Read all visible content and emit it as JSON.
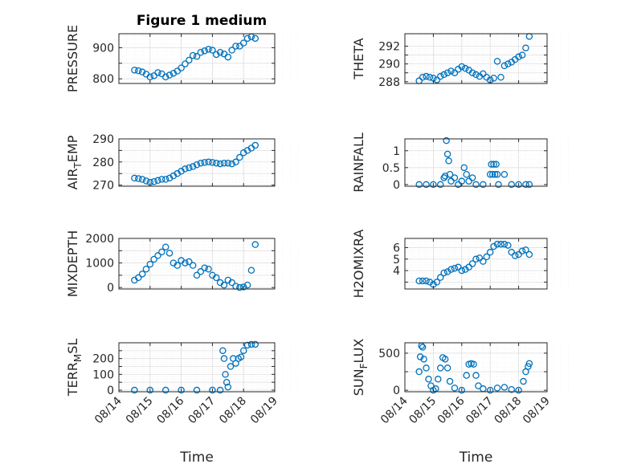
{
  "title": "Figure 1 medium",
  "x_tick_labels": [
    "08/14",
    "08/15",
    "08/16",
    "08/17",
    "08/18",
    "08/19"
  ],
  "x_axis_label": "Time",
  "marker_color": "#0072BD",
  "chart_data": [
    {
      "type": "scatter",
      "ylabel": "PRESSURE",
      "title": "Figure 1 medium",
      "ylim": [
        785,
        945
      ],
      "yticks": [
        800,
        850,
        900
      ],
      "ytick_labels": [
        "800",
        "",
        "900"
      ],
      "grid": true,
      "x": [
        "08/14 12:00",
        "08/14 15:00",
        "08/14 18:00",
        "08/14 21:00",
        "08/15 00:00",
        "08/15 03:00",
        "08/15 06:00",
        "08/15 09:00",
        "08/15 12:00",
        "08/15 15:00",
        "08/15 18:00",
        "08/15 21:00",
        "08/16 00:00",
        "08/16 03:00",
        "08/16 06:00",
        "08/16 09:00",
        "08/16 12:00",
        "08/16 15:00",
        "08/16 18:00",
        "08/16 21:00",
        "08/17 00:00",
        "08/17 03:00",
        "08/17 06:00",
        "08/17 09:00",
        "08/17 12:00",
        "08/17 15:00",
        "08/17 18:00",
        "08/17 21:00",
        "08/18 00:00",
        "08/18 03:00",
        "08/18 06:00",
        "08/18 09:00"
      ],
      "values": [
        828,
        826,
        822,
        815,
        806,
        810,
        820,
        816,
        806,
        812,
        818,
        825,
        835,
        848,
        860,
        875,
        872,
        885,
        890,
        895,
        892,
        878,
        885,
        880,
        870,
        892,
        905,
        905,
        915,
        930,
        935,
        930
      ]
    },
    {
      "type": "scatter",
      "ylabel": "THETA",
      "ylim": [
        287.8,
        293.4
      ],
      "yticks": [
        288,
        289,
        290,
        291,
        292
      ],
      "ytick_labels": [
        "288",
        "",
        "290",
        "",
        "292"
      ],
      "grid": true,
      "x": [
        "08/14 12:00",
        "08/14 15:00",
        "08/14 18:00",
        "08/14 21:00",
        "08/15 00:00",
        "08/15 03:00",
        "08/15 06:00",
        "08/15 09:00",
        "08/15 12:00",
        "08/15 15:00",
        "08/15 18:00",
        "08/15 21:00",
        "08/16 00:00",
        "08/16 03:00",
        "08/16 06:00",
        "08/16 09:00",
        "08/16 12:00",
        "08/16 15:00",
        "08/16 18:00",
        "08/16 21:00",
        "08/17 00:00",
        "08/17 03:00",
        "08/17 06:00",
        "08/17 09:00",
        "08/17 12:00",
        "08/17 15:00",
        "08/17 18:00",
        "08/17 21:00",
        "08/18 00:00",
        "08/18 03:00",
        "08/18 06:00",
        "08/18 09:00"
      ],
      "values": [
        288.1,
        288.5,
        288.6,
        288.5,
        288.4,
        288.2,
        288.6,
        288.8,
        289.0,
        289.2,
        289.0,
        289.4,
        289.7,
        289.5,
        289.3,
        289.0,
        288.8,
        288.6,
        288.9,
        288.5,
        288.2,
        288.4,
        290.3,
        288.5,
        289.8,
        290.0,
        290.2,
        290.5,
        290.8,
        291.0,
        291.8,
        293.1
      ]
    },
    {
      "type": "scatter",
      "ylabel": "AIR",
      "ylabel_sub": "T",
      "ylabel_rest": "EMP",
      "ylim": [
        269.5,
        290
      ],
      "yticks": [
        270,
        275,
        280,
        285,
        290
      ],
      "ytick_labels": [
        "270",
        "",
        "280",
        "",
        "290"
      ],
      "grid": true,
      "x": [
        "08/14 12:00",
        "08/14 15:00",
        "08/14 18:00",
        "08/14 21:00",
        "08/15 00:00",
        "08/15 03:00",
        "08/15 06:00",
        "08/15 09:00",
        "08/15 12:00",
        "08/15 15:00",
        "08/15 18:00",
        "08/15 21:00",
        "08/16 00:00",
        "08/16 03:00",
        "08/16 06:00",
        "08/16 09:00",
        "08/16 12:00",
        "08/16 15:00",
        "08/16 18:00",
        "08/16 21:00",
        "08/17 00:00",
        "08/17 03:00",
        "08/17 06:00",
        "08/17 09:00",
        "08/17 12:00",
        "08/17 15:00",
        "08/17 18:00",
        "08/17 21:00",
        "08/18 00:00",
        "08/18 03:00",
        "08/18 06:00",
        "08/18 09:00"
      ],
      "values": [
        273.0,
        272.8,
        272.5,
        271.8,
        271.2,
        271.5,
        272.0,
        272.5,
        272.5,
        273.0,
        274.0,
        275.0,
        276.0,
        277.0,
        277.5,
        278.0,
        278.8,
        279.5,
        279.8,
        280.0,
        279.8,
        279.5,
        279.2,
        279.5,
        279.5,
        279.2,
        280.0,
        282.0,
        284.0,
        285.0,
        286.0,
        287.2
      ]
    },
    {
      "type": "scatter",
      "ylabel": "RAINFALL",
      "ylim": [
        -0.05,
        1.35
      ],
      "yticks": [
        0,
        0.5,
        1
      ],
      "ytick_labels": [
        "0",
        "0.5",
        "1"
      ],
      "grid": true,
      "x": [
        "08/14 12:00",
        "08/14 18:00",
        "08/15 00:00",
        "08/15 06:00",
        "08/15 09:00",
        "08/15 10:00",
        "08/15 11:00",
        "08/15 12:00",
        "08/15 13:00",
        "08/15 14:00",
        "08/15 15:00",
        "08/15 18:00",
        "08/15 21:00",
        "08/16 00:00",
        "08/16 02:00",
        "08/16 04:00",
        "08/16 06:00",
        "08/16 09:00",
        "08/16 12:00",
        "08/16 18:00",
        "08/17 00:00",
        "08/17 01:00",
        "08/17 02:00",
        "08/17 03:00",
        "08/17 04:00",
        "08/17 05:00",
        "08/17 06:00",
        "08/17 07:00",
        "08/17 12:00",
        "08/17 18:00",
        "08/18 00:00",
        "08/18 06:00",
        "08/18 09:00"
      ],
      "values": [
        0,
        0,
        0,
        0,
        0.2,
        0.25,
        1.3,
        0.9,
        0.7,
        0.3,
        0.1,
        0.2,
        0,
        0.1,
        0.5,
        0.3,
        0.1,
        0.2,
        0,
        0,
        0.3,
        0.6,
        0.3,
        0.6,
        0.3,
        0.6,
        0.3,
        0,
        0.3,
        0,
        0,
        0,
        0
      ]
    },
    {
      "type": "scatter",
      "ylabel": "MIXDEPTH",
      "ylim": [
        -60,
        2000
      ],
      "yticks": [
        0,
        500,
        1000,
        1500,
        2000
      ],
      "ytick_labels": [
        "0",
        "",
        "1000",
        "",
        "2000"
      ],
      "grid": true,
      "x": [
        "08/14 12:00",
        "08/14 15:00",
        "08/14 18:00",
        "08/14 21:00",
        "08/15 00:00",
        "08/15 03:00",
        "08/15 06:00",
        "08/15 09:00",
        "08/15 12:00",
        "08/15 15:00",
        "08/15 18:00",
        "08/15 21:00",
        "08/16 00:00",
        "08/16 03:00",
        "08/16 06:00",
        "08/16 09:00",
        "08/16 12:00",
        "08/16 15:00",
        "08/16 18:00",
        "08/16 21:00",
        "08/17 00:00",
        "08/17 03:00",
        "08/17 06:00",
        "08/17 09:00",
        "08/17 12:00",
        "08/17 15:00",
        "08/17 18:00",
        "08/17 21:00",
        "08/18 00:00",
        "08/18 03:00",
        "08/18 06:00",
        "08/18 09:00"
      ],
      "values": [
        300,
        400,
        550,
        750,
        950,
        1150,
        1300,
        1450,
        1650,
        1400,
        1000,
        900,
        1100,
        1000,
        1050,
        900,
        500,
        650,
        800,
        750,
        500,
        400,
        200,
        100,
        300,
        200,
        50,
        0,
        20,
        100,
        700,
        1750
      ]
    },
    {
      "type": "scatter",
      "ylabel": "H2OMIXRA",
      "ylim": [
        2.4,
        6.8
      ],
      "yticks": [
        3,
        4,
        5,
        6
      ],
      "ytick_labels": [
        "",
        "4",
        "5",
        "6"
      ],
      "grid": true,
      "x": [
        "08/14 12:00",
        "08/14 15:00",
        "08/14 18:00",
        "08/14 21:00",
        "08/15 00:00",
        "08/15 03:00",
        "08/15 06:00",
        "08/15 09:00",
        "08/15 12:00",
        "08/15 15:00",
        "08/15 18:00",
        "08/15 21:00",
        "08/16 00:00",
        "08/16 03:00",
        "08/16 06:00",
        "08/16 09:00",
        "08/16 12:00",
        "08/16 15:00",
        "08/16 18:00",
        "08/16 21:00",
        "08/17 00:00",
        "08/17 03:00",
        "08/17 06:00",
        "08/17 09:00",
        "08/17 12:00",
        "08/17 15:00",
        "08/17 18:00",
        "08/17 21:00",
        "08/18 00:00",
        "08/18 03:00",
        "08/18 06:00",
        "08/18 09:00"
      ],
      "values": [
        3.1,
        3.1,
        3.1,
        3.0,
        2.8,
        3.0,
        3.4,
        3.8,
        3.9,
        4.1,
        4.2,
        4.3,
        4.0,
        4.1,
        4.3,
        4.6,
        5.0,
        5.1,
        4.8,
        5.2,
        5.6,
        6.1,
        6.3,
        6.3,
        6.3,
        6.2,
        5.6,
        5.3,
        5.4,
        5.7,
        5.8,
        5.4
      ]
    },
    {
      "type": "scatter",
      "ylabel": "TERR",
      "ylabel_sub": "M",
      "ylabel_rest": "SL",
      "ylim": [
        -10,
        300
      ],
      "yticks": [
        0,
        50,
        100,
        150,
        200,
        250
      ],
      "ytick_labels": [
        "0",
        "",
        "100",
        "",
        "200",
        ""
      ],
      "grid": true,
      "x": [
        "08/14 12:00",
        "08/15 00:00",
        "08/15 12:00",
        "08/16 00:00",
        "08/16 12:00",
        "08/17 00:00",
        "08/17 06:00",
        "08/17 08:00",
        "08/17 09:00",
        "08/17 10:00",
        "08/17 11:00",
        "08/17 12:00",
        "08/17 14:00",
        "08/17 16:00",
        "08/17 18:00",
        "08/17 20:00",
        "08/17 22:00",
        "08/18 00:00",
        "08/18 03:00",
        "08/18 06:00",
        "08/18 09:00"
      ],
      "values": [
        0,
        0,
        0,
        0,
        0,
        0,
        0,
        250,
        200,
        100,
        50,
        20,
        150,
        200,
        170,
        200,
        210,
        250,
        285,
        290,
        290
      ]
    },
    {
      "type": "scatter",
      "ylabel": "SUN",
      "ylabel_sub": "F",
      "ylabel_rest": "LUX",
      "ylim": [
        -20,
        640
      ],
      "yticks": [
        0,
        250,
        500
      ],
      "ytick_labels": [
        "0",
        "",
        "500"
      ],
      "grid": true,
      "x": [
        "08/14 12:00",
        "08/14 13:00",
        "08/14 14:00",
        "08/14 15:00",
        "08/14 16:00",
        "08/14 18:00",
        "08/14 20:00",
        "08/14 22:00",
        "08/15 00:00",
        "08/15 02:00",
        "08/15 04:00",
        "08/15 06:00",
        "08/15 08:00",
        "08/15 10:00",
        "08/15 12:00",
        "08/15 14:00",
        "08/15 18:00",
        "08/16 00:00",
        "08/16 04:00",
        "08/16 06:00",
        "08/16 08:00",
        "08/16 10:00",
        "08/16 12:00",
        "08/16 14:00",
        "08/16 18:00",
        "08/17 00:00",
        "08/17 06:00",
        "08/17 12:00",
        "08/17 18:00",
        "08/18 00:00",
        "08/18 04:00",
        "08/18 06:00",
        "08/18 08:00",
        "08/18 09:00"
      ],
      "values": [
        250,
        450,
        600,
        580,
        420,
        300,
        150,
        60,
        0,
        20,
        150,
        300,
        440,
        420,
        300,
        120,
        30,
        0,
        200,
        350,
        360,
        350,
        200,
        60,
        20,
        0,
        30,
        40,
        10,
        0,
        120,
        250,
        320,
        360
      ]
    }
  ]
}
